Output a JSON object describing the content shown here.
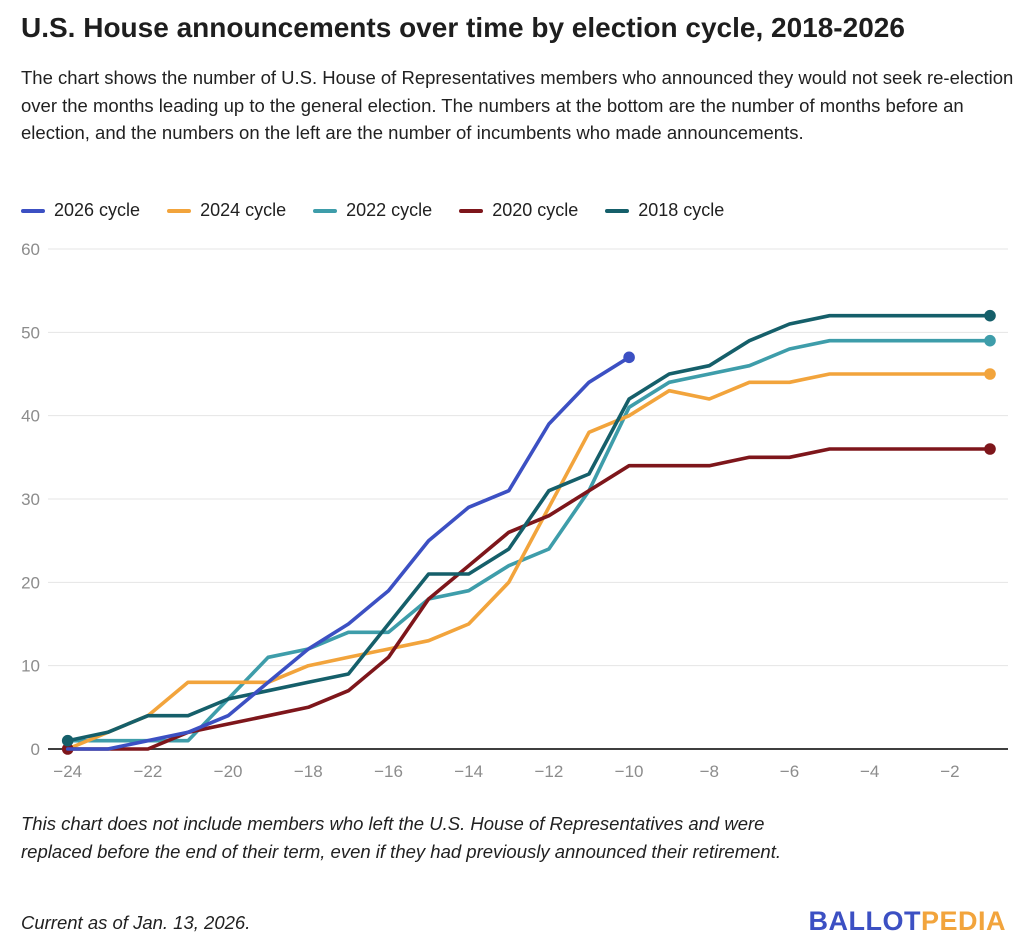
{
  "header": {
    "title": "U.S. House announcements over time by election cycle, 2018-2026",
    "subtitle": "The chart shows the number of U.S. House of Representatives members who announced they would not seek re-election over the months leading up to the general election. The numbers at the bottom are the number of months before an election, and the numbers on the left are the number of incumbents who made announcements."
  },
  "chart_data": {
    "type": "line",
    "title": "U.S. House announcements over time by election cycle, 2018-2026",
    "xlabel": "months before an election",
    "ylabel": "number of incumbents who made announcements",
    "ylim": [
      0,
      60
    ],
    "ytick_values": [
      0,
      10,
      20,
      30,
      40,
      50,
      60
    ],
    "ytick_labels": [
      "0",
      "10",
      "20",
      "30",
      "40",
      "50",
      "60"
    ],
    "xtick_values": [
      -24,
      -22,
      -20,
      -18,
      -16,
      -14,
      -12,
      -10,
      -8,
      -6,
      -4,
      -2
    ],
    "xtick_labels": [
      "−24",
      "−22",
      "−20",
      "−18",
      "−16",
      "−14",
      "−12",
      "−10",
      "−8",
      "−6",
      "−4",
      "−2"
    ],
    "grid": true,
    "legend_position": "top",
    "series": [
      {
        "name": "2026 cycle",
        "color": "#3c50c3",
        "start_month": -24,
        "start_dot": false,
        "end_dot": true,
        "values": [
          0,
          0,
          1,
          2,
          4,
          8,
          12,
          15,
          19,
          25,
          29,
          31,
          39,
          44,
          47
        ]
      },
      {
        "name": "2024 cycle",
        "color": "#f2a43c",
        "start_month": -24,
        "start_dot": false,
        "end_dot": true,
        "values": [
          0,
          2,
          4,
          8,
          8,
          8,
          10,
          11,
          12,
          13,
          15,
          20,
          29,
          38,
          40,
          43,
          42,
          44,
          44,
          45,
          45,
          45,
          45,
          45
        ]
      },
      {
        "name": "2022 cycle",
        "color": "#3e9daa",
        "start_month": -24,
        "start_dot": false,
        "end_dot": true,
        "values": [
          1,
          1,
          1,
          1,
          6,
          11,
          12,
          14,
          14,
          18,
          19,
          22,
          24,
          31,
          41,
          44,
          45,
          46,
          48,
          49,
          49,
          49,
          49,
          49
        ]
      },
      {
        "name": "2020 cycle",
        "color": "#7e161b",
        "start_month": -24,
        "start_dot": true,
        "end_dot": true,
        "values": [
          0,
          0,
          0,
          2,
          3,
          4,
          5,
          7,
          11,
          18,
          22,
          26,
          28,
          31,
          34,
          34,
          34,
          35,
          35,
          36,
          36,
          36,
          36,
          36
        ]
      },
      {
        "name": "2018 cycle",
        "color": "#155f6a",
        "start_month": -24,
        "start_dot": true,
        "end_dot": true,
        "values": [
          1,
          2,
          4,
          4,
          6,
          7,
          8,
          9,
          15,
          21,
          21,
          24,
          31,
          33,
          42,
          45,
          46,
          49,
          51,
          52,
          52,
          52,
          52,
          52
        ]
      }
    ]
  },
  "footer": {
    "note": "This chart does not include members who left the U.S. House of Representatives and were replaced before the end of their term, even if they had previously announced their retirement.",
    "current_as_of": "Current as of Jan. 13, 2026.",
    "logo": {
      "part1": "BALLOT",
      "part2": "PEDIA"
    }
  }
}
